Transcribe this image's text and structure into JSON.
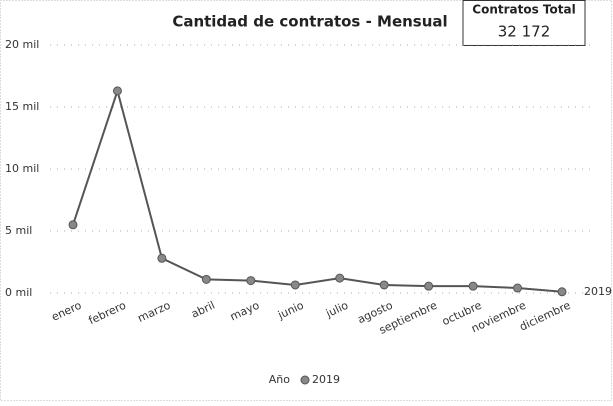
{
  "chart_data": {
    "type": "line",
    "title": "Cantidad de contratos - Mensual",
    "kpi": {
      "label": "Contratos Total",
      "value": "32 172"
    },
    "categories": [
      "enero",
      "febrero",
      "marzo",
      "abril",
      "mayo",
      "junio",
      "julio",
      "agosto",
      "septiembre",
      "octubre",
      "noviembre",
      "diciembre"
    ],
    "series": [
      {
        "name": "2019",
        "color": "#555555",
        "values": [
          5500,
          16300,
          2800,
          1100,
          1000,
          650,
          1200,
          650,
          550,
          550,
          400,
          100
        ]
      }
    ],
    "legend_title": "Año",
    "ylim": [
      0,
      20000
    ],
    "yticks": [
      {
        "value": 0,
        "label": "0 mil"
      },
      {
        "value": 5000,
        "label": "5 mil"
      },
      {
        "value": 10000,
        "label": "10 mil"
      },
      {
        "value": 15000,
        "label": "15 mil"
      },
      {
        "value": 20000,
        "label": "20 mil"
      }
    ],
    "grid": true
  }
}
